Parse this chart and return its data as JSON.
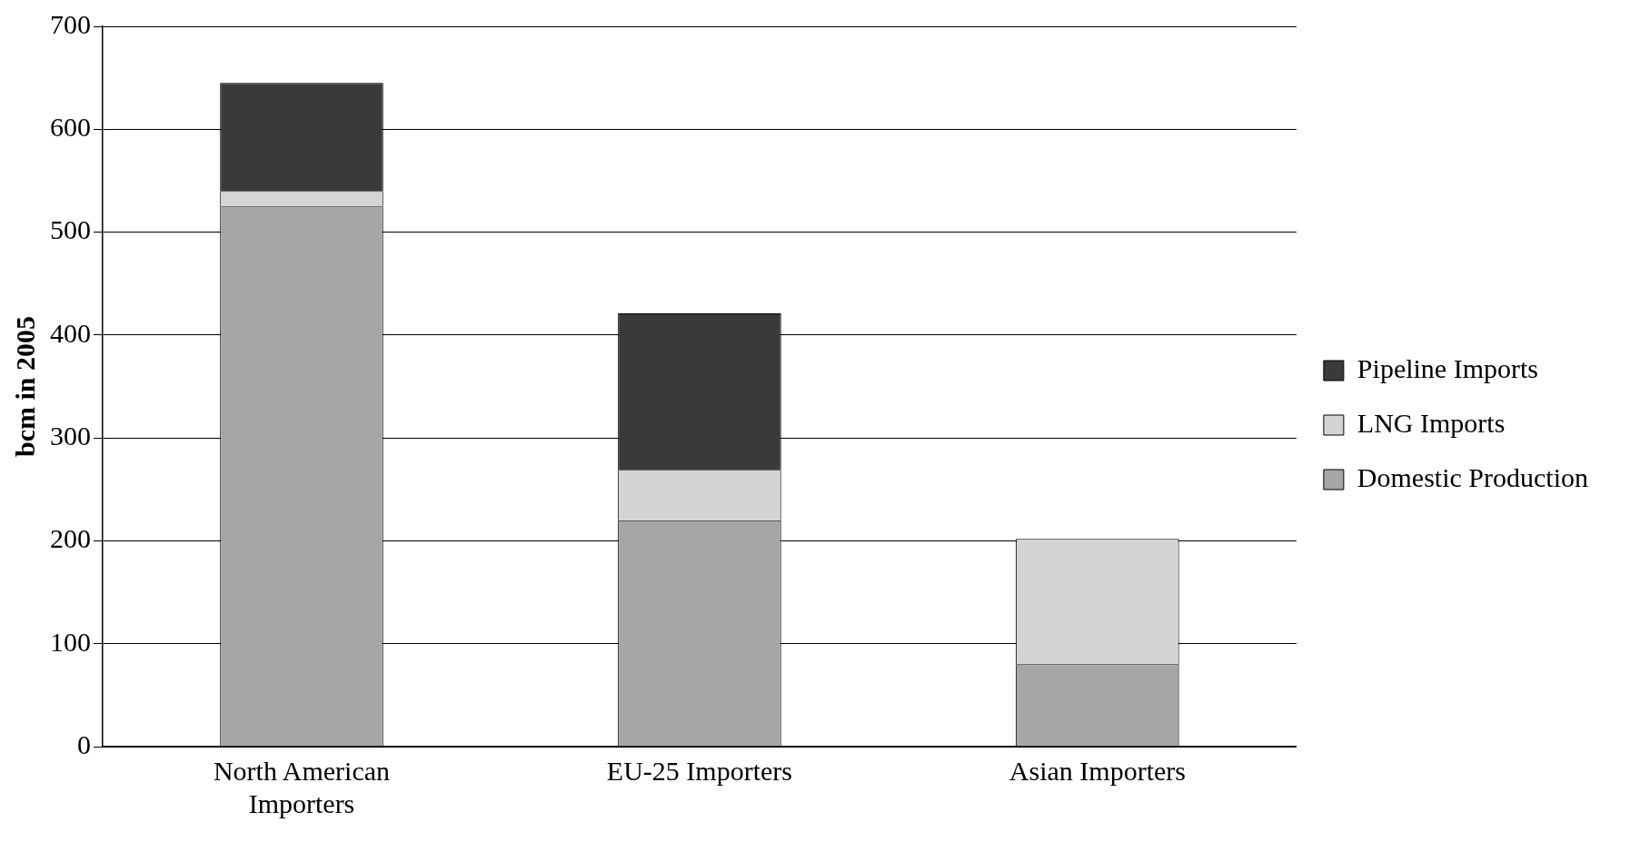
{
  "chart_data": {
    "type": "bar",
    "ylabel": "bcm in 2005",
    "categories": [
      "North American Importers",
      "EU-25 Importers",
      "Asian Importers"
    ],
    "stacked": true,
    "series": [
      {
        "name": "Domestic Production",
        "color": "#a6a6a6",
        "values": [
          525,
          220,
          80
        ]
      },
      {
        "name": "LNG Imports",
        "color": "#d4d4d4",
        "values": [
          15,
          49,
          122
        ]
      },
      {
        "name": "Pipeline Imports",
        "color": "#3a3a3a",
        "values": [
          105,
          152,
          null
        ]
      }
    ],
    "ylim": [
      0,
      700
    ],
    "yticks": [
      0,
      100,
      200,
      300,
      400,
      500,
      600,
      700
    ],
    "grid": "y",
    "legend": "right"
  }
}
